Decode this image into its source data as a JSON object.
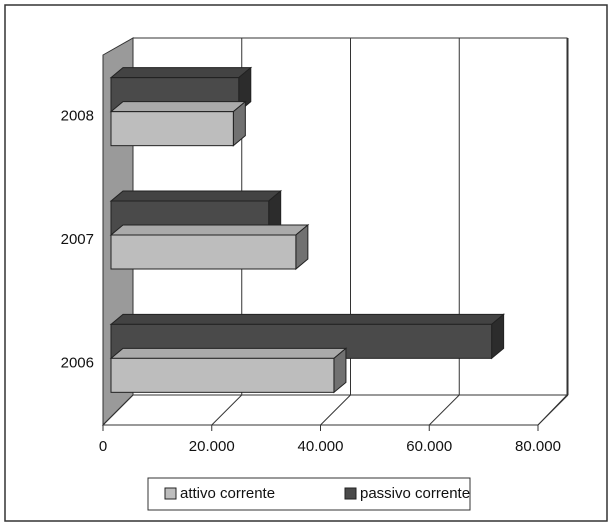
{
  "chart_data": {
    "type": "bar3d_horizontal",
    "categories": [
      "2006",
      "2007",
      "2008"
    ],
    "series": [
      {
        "name": "attivo corrente",
        "color": "#bdbdbd",
        "values": [
          41000,
          34000,
          22500
        ]
      },
      {
        "name": "passivo corrente",
        "color": "#4a4a4a",
        "values": [
          70000,
          29000,
          23500
        ]
      }
    ],
    "xlim": [
      0,
      80000
    ],
    "xticks": [
      0,
      {
        "value": 20000,
        "label": "20.000"
      },
      {
        "value": 40000,
        "label": "40.000"
      },
      {
        "value": 60000,
        "label": "60.000"
      },
      {
        "value": 80000,
        "label": "80.000"
      }
    ],
    "grid": true,
    "legend": "bottom"
  }
}
